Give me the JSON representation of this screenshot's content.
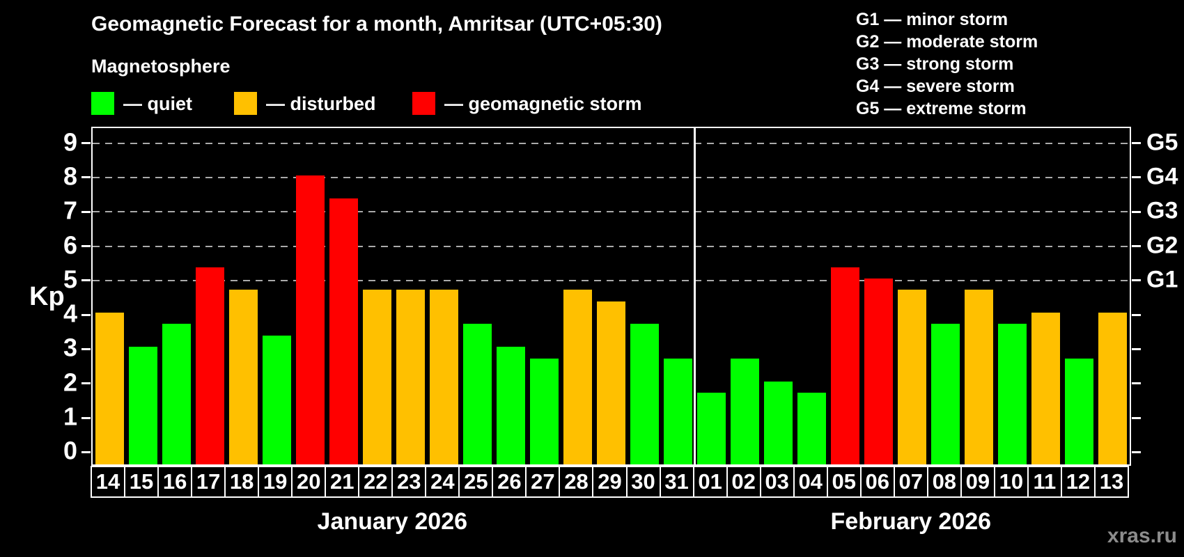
{
  "header": {
    "title": "Geomagnetic Forecast for a month, Amritsar (UTC+05:30)",
    "subtitle": "Magnetosphere"
  },
  "legend": {
    "items": [
      {
        "key": "quiet",
        "label": "— quiet",
        "color": "#00ff00"
      },
      {
        "key": "disturbed",
        "label": "— disturbed",
        "color": "#ffc000"
      },
      {
        "key": "storm",
        "label": "— geomagnetic storm",
        "color": "#ff0000"
      }
    ]
  },
  "g_legend": {
    "lines": [
      "G1 — minor storm",
      "G2 — moderate storm",
      "G3 — strong storm",
      "G4 — severe storm",
      "G5 — extreme storm"
    ]
  },
  "watermark": "xras.ru",
  "chart_data": {
    "type": "bar",
    "ylabel": "Kp",
    "ylim": [
      0,
      9
    ],
    "y_axis": {
      "ticks": [
        0,
        1,
        2,
        3,
        4,
        5,
        6,
        7,
        8,
        9
      ]
    },
    "right_axis": {
      "labels": [
        {
          "kp": 5,
          "label": "G1"
        },
        {
          "kp": 6,
          "label": "G2"
        },
        {
          "kp": 7,
          "label": "G3"
        },
        {
          "kp": 8,
          "label": "G4"
        },
        {
          "kp": 9,
          "label": "G5"
        }
      ]
    },
    "gridlines_kp": [
      5,
      6,
      7,
      8,
      9
    ],
    "status_colors": {
      "quiet": "#00ff00",
      "disturbed": "#ffc000",
      "storm": "#ff0000"
    },
    "months": [
      {
        "label": "January 2026",
        "days": [
          {
            "day": "14",
            "kp": 4.0,
            "status": "disturbed"
          },
          {
            "day": "15",
            "kp": 3.0,
            "status": "quiet"
          },
          {
            "day": "16",
            "kp": 3.67,
            "status": "quiet"
          },
          {
            "day": "17",
            "kp": 5.33,
            "status": "storm"
          },
          {
            "day": "18",
            "kp": 4.67,
            "status": "disturbed"
          },
          {
            "day": "19",
            "kp": 3.33,
            "status": "quiet"
          },
          {
            "day": "20",
            "kp": 8.0,
            "status": "storm"
          },
          {
            "day": "21",
            "kp": 7.33,
            "status": "storm"
          },
          {
            "day": "22",
            "kp": 4.67,
            "status": "disturbed"
          },
          {
            "day": "23",
            "kp": 4.67,
            "status": "disturbed"
          },
          {
            "day": "24",
            "kp": 4.67,
            "status": "disturbed"
          },
          {
            "day": "25",
            "kp": 3.67,
            "status": "quiet"
          },
          {
            "day": "26",
            "kp": 3.0,
            "status": "quiet"
          },
          {
            "day": "27",
            "kp": 2.67,
            "status": "quiet"
          },
          {
            "day": "28",
            "kp": 4.67,
            "status": "disturbed"
          },
          {
            "day": "29",
            "kp": 4.33,
            "status": "disturbed"
          },
          {
            "day": "30",
            "kp": 3.67,
            "status": "quiet"
          },
          {
            "day": "31",
            "kp": 2.67,
            "status": "quiet"
          }
        ]
      },
      {
        "label": "February 2026",
        "days": [
          {
            "day": "01",
            "kp": 1.67,
            "status": "quiet"
          },
          {
            "day": "02",
            "kp": 2.67,
            "status": "quiet"
          },
          {
            "day": "03",
            "kp": 2.0,
            "status": "quiet"
          },
          {
            "day": "04",
            "kp": 1.67,
            "status": "quiet"
          },
          {
            "day": "05",
            "kp": 5.33,
            "status": "storm"
          },
          {
            "day": "06",
            "kp": 5.0,
            "status": "storm"
          },
          {
            "day": "07",
            "kp": 4.67,
            "status": "disturbed"
          },
          {
            "day": "08",
            "kp": 3.67,
            "status": "quiet"
          },
          {
            "day": "09",
            "kp": 4.67,
            "status": "disturbed"
          },
          {
            "day": "10",
            "kp": 3.67,
            "status": "quiet"
          },
          {
            "day": "11",
            "kp": 4.0,
            "status": "disturbed"
          },
          {
            "day": "12",
            "kp": 2.67,
            "status": "quiet"
          },
          {
            "day": "13",
            "kp": 4.0,
            "status": "disturbed"
          }
        ]
      }
    ]
  }
}
